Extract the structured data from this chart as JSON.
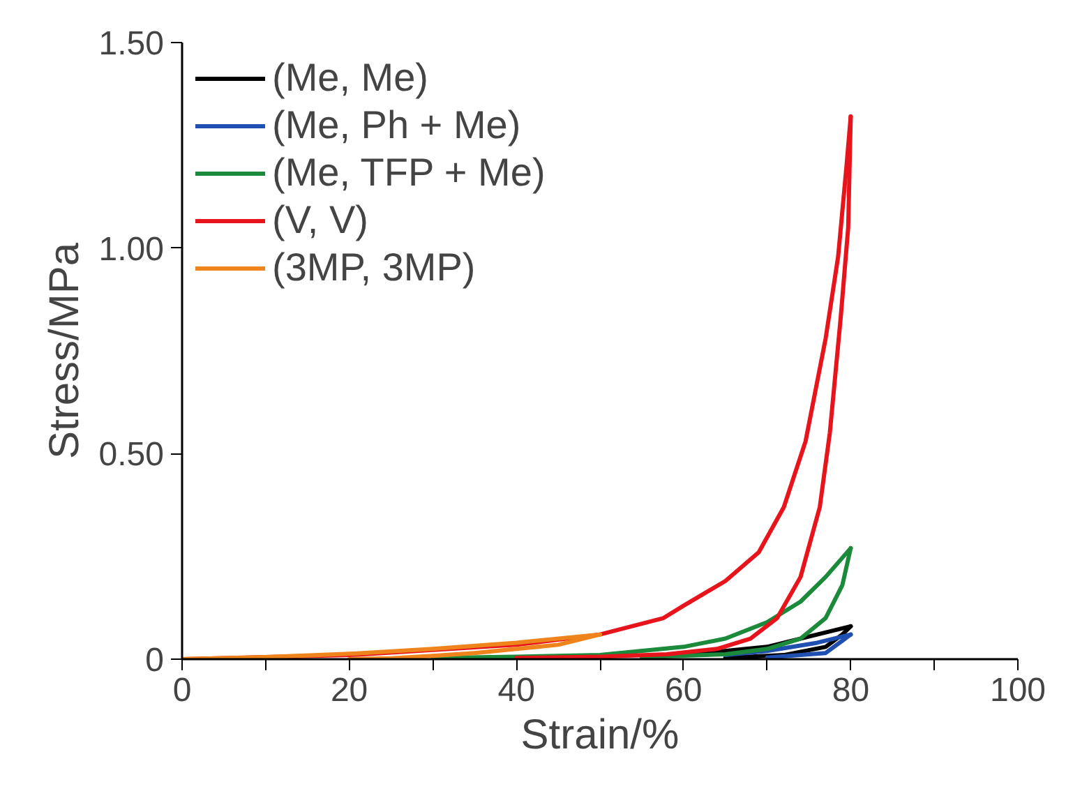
{
  "chart_data": {
    "type": "line",
    "xlabel": "Strain/%",
    "ylabel": "Stress/MPa",
    "xlim": [
      0,
      100
    ],
    "ylim": [
      0,
      1.5
    ],
    "xticks": [
      0,
      {
        "value": 10,
        "label": null
      },
      20,
      {
        "value": 30,
        "label": null
      },
      40,
      {
        "value": 50,
        "label": null
      },
      60,
      {
        "value": 70,
        "label": null
      },
      80,
      {
        "value": 90,
        "label": null
      },
      100
    ],
    "yticks": [
      0,
      {
        "value": 0.5,
        "label": "0.50"
      },
      {
        "value": 1.0,
        "label": "1.00"
      },
      {
        "value": 1.5,
        "label": "1.50"
      }
    ],
    "grid": false,
    "legend": "top left",
    "line_style": "solid",
    "marker": "none",
    "series": [
      {
        "name": "(Me, Me)",
        "color": "#000000",
        "x": [
          60,
          70,
          76,
          80
        ],
        "values": [
          0.01,
          0.03,
          0.06,
          0.08
        ]
      },
      {
        "color": "#000000",
        "x": [
          80,
          79,
          77,
          72,
          65
        ],
        "values": [
          0.08,
          0.06,
          0.03,
          0.01,
          0.003
        ]
      },
      {
        "name": "(Me, Ph + Me)",
        "color": "#1f4fb0",
        "x": [
          65,
          70,
          76,
          80
        ],
        "values": [
          0.01,
          0.02,
          0.04,
          0.06
        ]
      },
      {
        "color": "#1f4fb0",
        "x": [
          80,
          79,
          77,
          70
        ],
        "values": [
          0.06,
          0.045,
          0.015,
          0.004
        ]
      },
      {
        "name": "(Me, TFP + Me)",
        "color": "#1b8a3a",
        "x": [
          30,
          40,
          50,
          60,
          65,
          70,
          74,
          77,
          80
        ],
        "values": [
          0.003,
          0.006,
          0.01,
          0.03,
          0.05,
          0.09,
          0.14,
          0.2,
          0.27
        ]
      },
      {
        "color": "#1b8a3a",
        "x": [
          80,
          79,
          77,
          74,
          70,
          65,
          55
        ],
        "values": [
          0.27,
          0.18,
          0.1,
          0.05,
          0.025,
          0.012,
          0.005
        ]
      },
      {
        "name": "(V, V)",
        "color": "#e8141c",
        "x": [
          0,
          20,
          40,
          50,
          57.6,
          60,
          65,
          69,
          72,
          74.6,
          77,
          78.5,
          79.5,
          80
        ],
        "values": [
          0,
          0.01,
          0.035,
          0.06,
          0.1,
          0.13,
          0.19,
          0.26,
          0.37,
          0.53,
          0.78,
          0.98,
          1.2,
          1.32
        ]
      },
      {
        "color": "#e8141c",
        "x": [
          80,
          79.7,
          78.8,
          77.5,
          76.3,
          74,
          71.2,
          68,
          64,
          58,
          50,
          40
        ],
        "values": [
          1.32,
          1.05,
          0.83,
          0.55,
          0.37,
          0.2,
          0.1,
          0.05,
          0.025,
          0.012,
          0.006,
          0.003
        ]
      },
      {
        "name": "(3MP, 3MP)",
        "color": "#f0841c",
        "x": [
          0,
          10,
          20,
          30,
          40,
          50
        ],
        "values": [
          0,
          0.005,
          0.013,
          0.025,
          0.04,
          0.06
        ]
      },
      {
        "color": "#f0841c",
        "x": [
          50,
          45,
          40,
          35,
          30,
          25,
          20
        ],
        "values": [
          0.06,
          0.035,
          0.025,
          0.015,
          0.008,
          0.002,
          0
        ]
      }
    ]
  }
}
